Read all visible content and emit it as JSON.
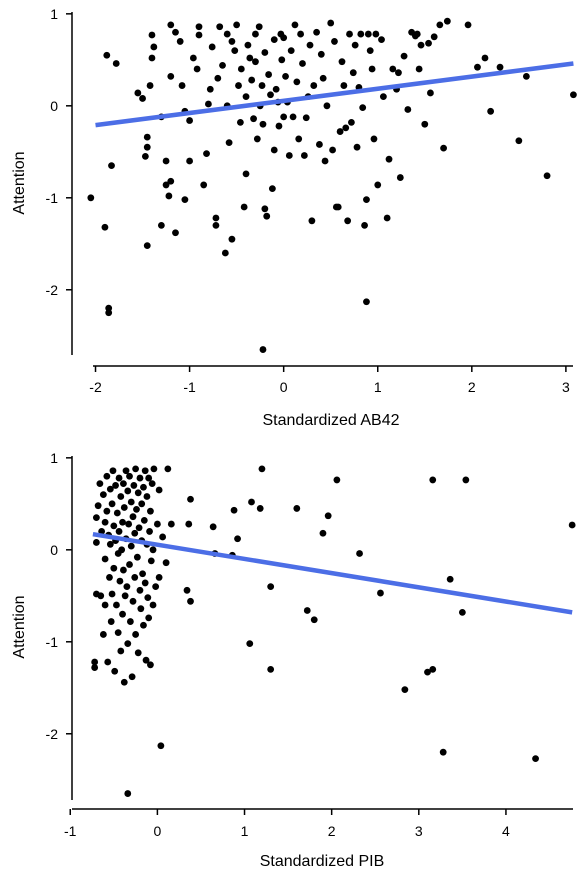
{
  "chart_data": [
    {
      "type": "scatter",
      "title": "",
      "xlabel": "Standardized AB42",
      "ylabel": "Attention",
      "xlim": [
        -2.25,
        3.15
      ],
      "ylim": [
        -2.72,
        1.02
      ],
      "x_ticks": [
        -2,
        -1,
        0,
        1,
        2,
        3
      ],
      "y_ticks": [
        1,
        0,
        -1,
        -2
      ],
      "grid": false,
      "point_color": "#000000",
      "trend_color": "#4c6ee6",
      "trend": {
        "x": [
          -2.0,
          3.08
        ],
        "y": [
          -0.21,
          0.46
        ]
      },
      "points": [
        [
          -2.05,
          -1.0
        ],
        [
          -1.9,
          -1.32
        ],
        [
          -1.86,
          -2.25
        ],
        [
          -1.86,
          -2.2
        ],
        [
          -1.83,
          -0.65
        ],
        [
          -1.88,
          0.55
        ],
        [
          -1.78,
          0.46
        ],
        [
          -1.55,
          0.14
        ],
        [
          -1.5,
          0.08
        ],
        [
          -1.45,
          -0.34
        ],
        [
          -1.47,
          -0.55
        ],
        [
          -1.45,
          -0.45
        ],
        [
          -1.42,
          0.22
        ],
        [
          -1.4,
          0.52
        ],
        [
          -1.4,
          0.77
        ],
        [
          -1.38,
          0.64
        ],
        [
          -1.45,
          -1.52
        ],
        [
          -1.3,
          -1.3
        ],
        [
          -1.3,
          -0.12
        ],
        [
          -1.25,
          -0.86
        ],
        [
          -1.25,
          -0.6
        ],
        [
          -1.2,
          -0.82
        ],
        [
          -1.22,
          -0.98
        ],
        [
          -1.2,
          0.88
        ],
        [
          -1.2,
          0.32
        ],
        [
          -1.15,
          -1.38
        ],
        [
          -1.15,
          0.8
        ],
        [
          -1.1,
          0.7
        ],
        [
          -1.08,
          0.22
        ],
        [
          -1.05,
          -0.06
        ],
        [
          -1.05,
          -1.02
        ],
        [
          -1.0,
          -0.6
        ],
        [
          -1.0,
          -0.16
        ],
        [
          -0.96,
          0.52
        ],
        [
          -0.92,
          0.4
        ],
        [
          -0.9,
          0.77
        ],
        [
          -0.9,
          0.86
        ],
        [
          -0.85,
          -0.86
        ],
        [
          -0.82,
          -0.52
        ],
        [
          -0.8,
          0.02
        ],
        [
          -0.78,
          0.18
        ],
        [
          -0.76,
          0.64
        ],
        [
          -0.72,
          -1.22
        ],
        [
          -0.72,
          -1.3
        ],
        [
          -0.7,
          0.3
        ],
        [
          -0.68,
          0.86
        ],
        [
          -0.65,
          0.44
        ],
        [
          -0.62,
          -1.6
        ],
        [
          -0.6,
          0.78
        ],
        [
          -0.6,
          0.0
        ],
        [
          -0.58,
          -0.4
        ],
        [
          -0.55,
          -1.45
        ],
        [
          -0.55,
          0.7
        ],
        [
          -0.52,
          0.6
        ],
        [
          -0.5,
          0.88
        ],
        [
          -0.48,
          0.22
        ],
        [
          -0.46,
          -0.18
        ],
        [
          -0.45,
          0.4
        ],
        [
          -0.42,
          -1.1
        ],
        [
          -0.4,
          -0.74
        ],
        [
          -0.4,
          0.1
        ],
        [
          -0.38,
          0.66
        ],
        [
          -0.36,
          0.52
        ],
        [
          -0.34,
          0.28
        ],
        [
          -0.32,
          -0.14
        ],
        [
          -0.3,
          0.78
        ],
        [
          -0.3,
          0.48
        ],
        [
          -0.28,
          -0.36
        ],
        [
          -0.26,
          0.86
        ],
        [
          -0.25,
          0.0
        ],
        [
          -0.23,
          0.22
        ],
        [
          -0.22,
          -0.2
        ],
        [
          -0.2,
          0.58
        ],
        [
          -0.2,
          -1.12
        ],
        [
          -0.18,
          -1.2
        ],
        [
          -0.16,
          0.34
        ],
        [
          -0.14,
          0.12
        ],
        [
          -0.12,
          -0.9
        ],
        [
          -0.1,
          -0.48
        ],
        [
          -0.1,
          0.72
        ],
        [
          -0.08,
          0.18
        ],
        [
          -0.06,
          0.04
        ],
        [
          -0.05,
          -0.22
        ],
        [
          -0.03,
          0.78
        ],
        [
          -0.02,
          0.5
        ],
        [
          0.0,
          -0.12
        ],
        [
          0.0,
          0.74
        ],
        [
          0.02,
          0.32
        ],
        [
          0.04,
          0.04
        ],
        [
          0.06,
          -0.54
        ],
        [
          0.08,
          0.6
        ],
        [
          0.1,
          -0.12
        ],
        [
          0.12,
          0.88
        ],
        [
          0.14,
          0.26
        ],
        [
          0.16,
          -0.36
        ],
        [
          0.18,
          0.78
        ],
        [
          0.2,
          0.46
        ],
        [
          0.22,
          -0.54
        ],
        [
          0.24,
          -0.13
        ],
        [
          0.26,
          0.1
        ],
        [
          0.28,
          0.66
        ],
        [
          0.3,
          -1.25
        ],
        [
          0.32,
          0.22
        ],
        [
          0.35,
          0.8
        ],
        [
          0.38,
          -0.42
        ],
        [
          0.4,
          0.56
        ],
        [
          0.42,
          0.3
        ],
        [
          0.44,
          -0.6
        ],
        [
          0.46,
          0.0
        ],
        [
          0.5,
          0.9
        ],
        [
          0.52,
          -0.48
        ],
        [
          0.54,
          0.7
        ],
        [
          0.56,
          -1.1
        ],
        [
          0.58,
          -1.1
        ],
        [
          0.6,
          -0.28
        ],
        [
          0.62,
          0.48
        ],
        [
          0.64,
          0.22
        ],
        [
          0.66,
          -0.24
        ],
        [
          0.68,
          -1.25
        ],
        [
          0.7,
          0.78
        ],
        [
          0.72,
          -0.18
        ],
        [
          0.74,
          0.36
        ],
        [
          0.76,
          0.66
        ],
        [
          0.78,
          -0.45
        ],
        [
          0.8,
          0.2
        ],
        [
          0.82,
          0.78
        ],
        [
          0.84,
          -0.02
        ],
        [
          0.86,
          -1.3
        ],
        [
          0.88,
          -1.02
        ],
        [
          0.88,
          -2.13
        ],
        [
          0.9,
          0.78
        ],
        [
          0.92,
          0.6
        ],
        [
          0.94,
          0.4
        ],
        [
          0.96,
          -0.36
        ],
        [
          0.98,
          0.78
        ],
        [
          1.0,
          -0.86
        ],
        [
          1.04,
          0.72
        ],
        [
          1.06,
          0.1
        ],
        [
          1.1,
          -1.22
        ],
        [
          1.12,
          -0.58
        ],
        [
          1.16,
          0.4
        ],
        [
          1.2,
          0.18
        ],
        [
          1.22,
          0.36
        ],
        [
          1.24,
          -0.78
        ],
        [
          1.28,
          0.54
        ],
        [
          1.32,
          -0.04
        ],
        [
          1.36,
          0.8
        ],
        [
          1.4,
          0.76
        ],
        [
          1.42,
          0.78
        ],
        [
          1.44,
          0.4
        ],
        [
          1.46,
          0.66
        ],
        [
          1.5,
          -0.2
        ],
        [
          1.54,
          0.68
        ],
        [
          1.56,
          0.14
        ],
        [
          1.6,
          0.75
        ],
        [
          1.66,
          0.88
        ],
        [
          1.7,
          -0.46
        ],
        [
          1.74,
          0.92
        ],
        [
          1.96,
          0.88
        ],
        [
          2.06,
          0.42
        ],
        [
          2.14,
          0.52
        ],
        [
          2.2,
          -0.06
        ],
        [
          2.3,
          0.42
        ],
        [
          2.5,
          -0.38
        ],
        [
          2.58,
          0.32
        ],
        [
          2.8,
          -0.76
        ],
        [
          3.08,
          0.12
        ],
        [
          -0.22,
          -2.65
        ]
      ]
    },
    {
      "type": "scatter",
      "title": "",
      "xlabel": "Standardized PIB",
      "ylabel": "Attention",
      "xlim": [
        -0.98,
        4.85
      ],
      "ylim": [
        -2.72,
        1.02
      ],
      "x_ticks": [
        -1,
        0,
        1,
        2,
        3,
        4
      ],
      "y_ticks": [
        1,
        0,
        -1,
        -2
      ],
      "grid": false,
      "point_color": "#000000",
      "trend_color": "#4c6ee6",
      "trend": {
        "x": [
          -0.74,
          4.76
        ],
        "y": [
          0.17,
          -0.68
        ]
      },
      "points": [
        [
          -0.72,
          -1.28
        ],
        [
          -0.72,
          -1.22
        ],
        [
          -0.7,
          0.35
        ],
        [
          -0.7,
          0.08
        ],
        [
          -0.7,
          -0.48
        ],
        [
          -0.68,
          0.48
        ],
        [
          -0.66,
          0.72
        ],
        [
          -0.65,
          -0.5
        ],
        [
          -0.64,
          0.2
        ],
        [
          -0.62,
          0.6
        ],
        [
          -0.62,
          -0.92
        ],
        [
          -0.6,
          0.3
        ],
        [
          -0.6,
          -0.1
        ],
        [
          -0.6,
          -0.6
        ],
        [
          -0.58,
          0.8
        ],
        [
          -0.58,
          0.42
        ],
        [
          -0.57,
          -1.22
        ],
        [
          -0.56,
          0.16
        ],
        [
          -0.55,
          -0.3
        ],
        [
          -0.54,
          0.66
        ],
        [
          -0.54,
          0.06
        ],
        [
          -0.53,
          -0.78
        ],
        [
          -0.52,
          0.5
        ],
        [
          -0.52,
          -0.48
        ],
        [
          -0.51,
          0.86
        ],
        [
          -0.5,
          0.26
        ],
        [
          -0.5,
          -0.2
        ],
        [
          -0.49,
          -1.32
        ],
        [
          -0.48,
          0.7
        ],
        [
          -0.48,
          0.1
        ],
        [
          -0.47,
          -0.6
        ],
        [
          -0.46,
          0.4
        ],
        [
          -0.45,
          -0.04
        ],
        [
          -0.45,
          -0.9
        ],
        [
          -0.44,
          0.78
        ],
        [
          -0.44,
          0.2
        ],
        [
          -0.43,
          -0.34
        ],
        [
          -0.42,
          0.58
        ],
        [
          -0.42,
          -1.1
        ],
        [
          -0.41,
          0.0
        ],
        [
          -0.4,
          0.3
        ],
        [
          -0.4,
          -0.7
        ],
        [
          -0.39,
          0.72
        ],
        [
          -0.39,
          -0.22
        ],
        [
          -0.38,
          -1.44
        ],
        [
          -0.38,
          0.46
        ],
        [
          -0.37,
          -0.5
        ],
        [
          -0.36,
          0.86
        ],
        [
          -0.36,
          0.12
        ],
        [
          -0.35,
          -0.4
        ],
        [
          -0.34,
          0.64
        ],
        [
          -0.34,
          -1.02
        ],
        [
          -0.34,
          -2.65
        ],
        [
          -0.33,
          0.28
        ],
        [
          -0.32,
          -0.16
        ],
        [
          -0.32,
          0.8
        ],
        [
          -0.31,
          -0.78
        ],
        [
          -0.3,
          0.52
        ],
        [
          -0.3,
          0.04
        ],
        [
          -0.29,
          -1.38
        ],
        [
          -0.28,
          0.36
        ],
        [
          -0.28,
          -0.56
        ],
        [
          -0.27,
          0.7
        ],
        [
          -0.26,
          0.18
        ],
        [
          -0.26,
          -0.3
        ],
        [
          -0.25,
          0.88
        ],
        [
          -0.25,
          -0.92
        ],
        [
          -0.24,
          0.44
        ],
        [
          -0.23,
          -0.08
        ],
        [
          -0.22,
          0.62
        ],
        [
          -0.22,
          -1.12
        ],
        [
          -0.21,
          0.24
        ],
        [
          -0.2,
          -0.44
        ],
        [
          -0.2,
          0.78
        ],
        [
          -0.19,
          -0.64
        ],
        [
          -0.18,
          0.1
        ],
        [
          -0.18,
          0.5
        ],
        [
          -0.17,
          -0.26
        ],
        [
          -0.16,
          0.68
        ],
        [
          -0.16,
          -0.82
        ],
        [
          -0.15,
          0.32
        ],
        [
          -0.14,
          -0.36
        ],
        [
          -0.14,
          0.86
        ],
        [
          -0.13,
          -1.2
        ],
        [
          -0.12,
          0.06
        ],
        [
          -0.12,
          0.58
        ],
        [
          -0.11,
          -0.52
        ],
        [
          -0.1,
          0.78
        ],
        [
          -0.1,
          -0.74
        ],
        [
          -0.09,
          0.2
        ],
        [
          -0.08,
          -1.25
        ],
        [
          -0.08,
          0.42
        ],
        [
          -0.07,
          -0.12
        ],
        [
          -0.06,
          0.72
        ],
        [
          -0.05,
          -0.6
        ],
        [
          -0.05,
          0.0
        ],
        [
          -0.04,
          0.88
        ],
        [
          -0.02,
          -0.4
        ],
        [
          0.0,
          0.28
        ],
        [
          0.02,
          0.65
        ],
        [
          0.02,
          -0.3
        ],
        [
          0.04,
          -2.13
        ],
        [
          0.06,
          0.14
        ],
        [
          0.1,
          -0.14
        ],
        [
          0.12,
          0.88
        ],
        [
          0.16,
          0.28
        ],
        [
          0.34,
          -0.44
        ],
        [
          0.36,
          0.28
        ],
        [
          0.38,
          0.55
        ],
        [
          0.38,
          -0.56
        ],
        [
          0.64,
          0.25
        ],
        [
          0.66,
          -0.04
        ],
        [
          0.86,
          -0.06
        ],
        [
          0.88,
          0.43
        ],
        [
          0.92,
          0.12
        ],
        [
          1.06,
          -1.02
        ],
        [
          1.08,
          0.52
        ],
        [
          1.18,
          0.45
        ],
        [
          1.2,
          0.88
        ],
        [
          1.3,
          -0.4
        ],
        [
          1.3,
          -1.3
        ],
        [
          1.6,
          0.45
        ],
        [
          1.72,
          -0.66
        ],
        [
          1.8,
          -0.76
        ],
        [
          1.9,
          0.18
        ],
        [
          1.96,
          0.37
        ],
        [
          2.06,
          0.76
        ],
        [
          2.32,
          -0.04
        ],
        [
          2.56,
          -0.47
        ],
        [
          2.84,
          -1.52
        ],
        [
          3.1,
          -1.33
        ],
        [
          3.16,
          0.76
        ],
        [
          3.16,
          -1.3
        ],
        [
          3.28,
          -2.2
        ],
        [
          3.36,
          -0.32
        ],
        [
          3.5,
          -0.68
        ],
        [
          3.54,
          0.76
        ],
        [
          4.34,
          -2.27
        ],
        [
          4.76,
          0.27
        ]
      ]
    }
  ]
}
